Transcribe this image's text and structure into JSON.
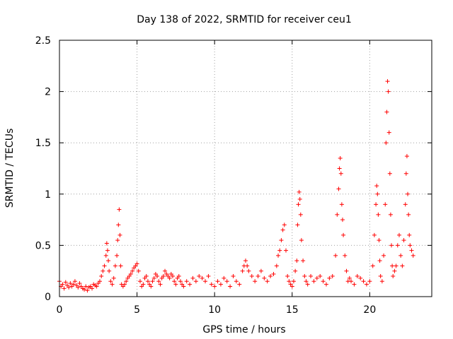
{
  "chart_data": {
    "type": "scatter",
    "title": "Day 138 of 2022, SRMTID for receiver ceu1",
    "xlabel": "GPS time / hours",
    "ylabel": "SRMTID / TECUs",
    "xlim": [
      0,
      24
    ],
    "ylim": [
      0,
      2.5
    ],
    "xticks": [
      0,
      5,
      10,
      15,
      20
    ],
    "xtick_labels": [
      "0",
      "5",
      "10",
      "15",
      "20"
    ],
    "yticks": [
      0,
      0.5,
      1,
      1.5,
      2,
      2.5
    ],
    "ytick_labels": [
      "0",
      "0.5",
      "1",
      "1.5",
      "2",
      "2.5"
    ],
    "grid": true,
    "marker": "+",
    "color": "#ff0000",
    "series": [
      {
        "name": "ceu1",
        "x": [
          0.0,
          0.1,
          0.2,
          0.3,
          0.4,
          0.5,
          0.6,
          0.7,
          0.8,
          0.9,
          1.0,
          1.1,
          1.2,
          1.3,
          1.4,
          1.5,
          1.6,
          1.7,
          1.8,
          1.9,
          2.0,
          2.1,
          2.2,
          2.3,
          2.4,
          2.5,
          2.6,
          2.7,
          2.8,
          2.9,
          3.0,
          3.05,
          3.1,
          3.15,
          3.2,
          3.3,
          3.4,
          3.5,
          3.6,
          3.7,
          3.75,
          3.8,
          3.85,
          3.9,
          3.95,
          4.0,
          4.1,
          4.2,
          4.3,
          4.4,
          4.5,
          4.6,
          4.7,
          4.8,
          4.9,
          5.0,
          5.1,
          5.2,
          5.3,
          5.4,
          5.5,
          5.6,
          5.7,
          5.8,
          5.9,
          6.0,
          6.1,
          6.2,
          6.3,
          6.4,
          6.5,
          6.6,
          6.7,
          6.8,
          6.9,
          7.0,
          7.1,
          7.2,
          7.3,
          7.4,
          7.5,
          7.6,
          7.7,
          7.8,
          7.9,
          8.0,
          8.2,
          8.4,
          8.6,
          8.8,
          9.0,
          9.2,
          9.4,
          9.6,
          9.8,
          10.0,
          10.2,
          10.4,
          10.6,
          10.8,
          11.0,
          11.2,
          11.4,
          11.6,
          11.8,
          11.9,
          12.0,
          12.1,
          12.2,
          12.4,
          12.6,
          12.8,
          13.0,
          13.2,
          13.4,
          13.6,
          13.8,
          14.0,
          14.1,
          14.2,
          14.3,
          14.4,
          14.5,
          14.6,
          14.7,
          14.8,
          14.9,
          15.0,
          15.1,
          15.2,
          15.3,
          15.35,
          15.4,
          15.45,
          15.5,
          15.55,
          15.6,
          15.7,
          15.8,
          15.9,
          16.0,
          16.2,
          16.4,
          16.6,
          16.8,
          17.0,
          17.2,
          17.4,
          17.6,
          17.8,
          17.9,
          18.0,
          18.05,
          18.1,
          18.15,
          18.2,
          18.25,
          18.3,
          18.4,
          18.5,
          18.6,
          18.7,
          18.8,
          19.0,
          19.2,
          19.4,
          19.6,
          19.8,
          20.0,
          20.2,
          20.3,
          20.4,
          20.45,
          20.5,
          20.55,
          20.6,
          20.65,
          20.7,
          20.8,
          20.9,
          21.0,
          21.05,
          21.1,
          21.15,
          21.2,
          21.25,
          21.3,
          21.35,
          21.4,
          21.45,
          21.5,
          21.6,
          21.7,
          21.8,
          21.9,
          22.0,
          22.1,
          22.2,
          22.3,
          22.35,
          22.4,
          22.45,
          22.5,
          22.55,
          22.6,
          22.7,
          22.8
        ],
        "y": [
          0.15,
          0.1,
          0.12,
          0.08,
          0.14,
          0.11,
          0.09,
          0.13,
          0.1,
          0.12,
          0.15,
          0.11,
          0.09,
          0.13,
          0.1,
          0.08,
          0.07,
          0.1,
          0.06,
          0.09,
          0.1,
          0.08,
          0.12,
          0.11,
          0.1,
          0.13,
          0.15,
          0.2,
          0.25,
          0.3,
          0.4,
          0.52,
          0.45,
          0.35,
          0.25,
          0.15,
          0.12,
          0.18,
          0.3,
          0.4,
          0.55,
          0.7,
          0.85,
          0.6,
          0.3,
          0.12,
          0.1,
          0.12,
          0.15,
          0.18,
          0.2,
          0.22,
          0.25,
          0.28,
          0.3,
          0.32,
          0.25,
          0.15,
          0.1,
          0.12,
          0.18,
          0.2,
          0.15,
          0.12,
          0.1,
          0.15,
          0.18,
          0.22,
          0.2,
          0.15,
          0.12,
          0.18,
          0.2,
          0.25,
          0.22,
          0.2,
          0.18,
          0.22,
          0.2,
          0.15,
          0.12,
          0.18,
          0.2,
          0.15,
          0.12,
          0.1,
          0.15,
          0.12,
          0.18,
          0.15,
          0.2,
          0.18,
          0.15,
          0.2,
          0.12,
          0.1,
          0.15,
          0.12,
          0.18,
          0.15,
          0.1,
          0.2,
          0.15,
          0.12,
          0.25,
          0.3,
          0.35,
          0.3,
          0.25,
          0.2,
          0.15,
          0.2,
          0.25,
          0.18,
          0.15,
          0.2,
          0.22,
          0.3,
          0.4,
          0.45,
          0.55,
          0.65,
          0.7,
          0.45,
          0.2,
          0.15,
          0.12,
          0.1,
          0.15,
          0.25,
          0.35,
          0.7,
          0.9,
          1.02,
          0.95,
          0.8,
          0.55,
          0.35,
          0.2,
          0.15,
          0.12,
          0.2,
          0.15,
          0.18,
          0.2,
          0.15,
          0.12,
          0.18,
          0.2,
          0.4,
          0.8,
          1.05,
          1.25,
          1.35,
          1.2,
          0.9,
          0.75,
          0.6,
          0.4,
          0.25,
          0.15,
          0.18,
          0.15,
          0.12,
          0.2,
          0.18,
          0.15,
          0.12,
          0.15,
          0.3,
          0.6,
          0.9,
          1.08,
          1.0,
          0.8,
          0.55,
          0.35,
          0.2,
          0.15,
          0.4,
          0.9,
          1.5,
          1.8,
          2.1,
          2.0,
          1.6,
          1.2,
          0.8,
          0.5,
          0.3,
          0.2,
          0.25,
          0.3,
          0.5,
          0.6,
          0.4,
          0.3,
          0.55,
          0.9,
          1.2,
          1.37,
          1.0,
          0.8,
          0.6,
          0.5,
          0.45,
          0.4
        ]
      }
    ]
  }
}
